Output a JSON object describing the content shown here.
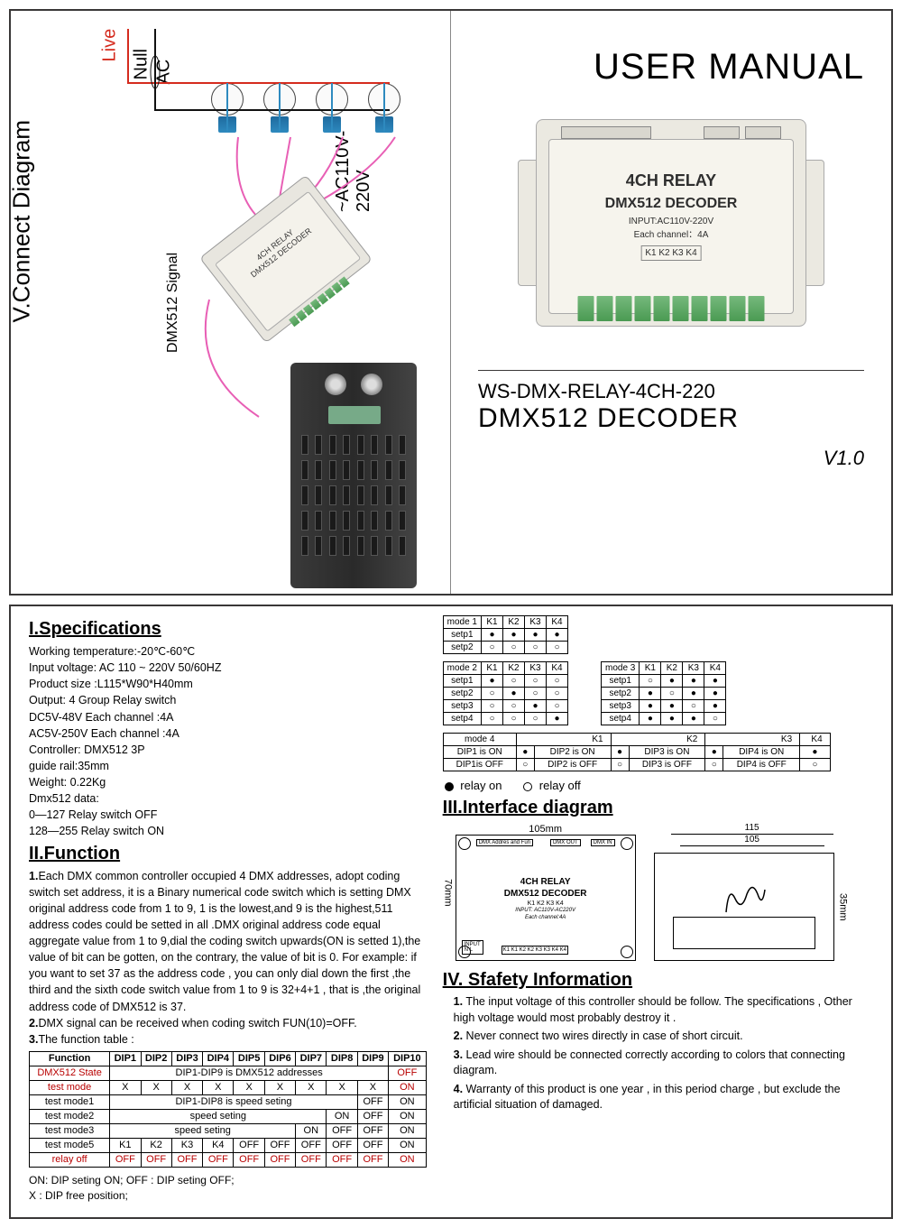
{
  "cover": {
    "user_manual": "USER MANUAL",
    "device": {
      "line1": "4CH RELAY",
      "line2": "DMX512 DECODER",
      "line3": "INPUT:AC110V-220V",
      "line4": "Each channel：4A",
      "channels": "K1 K2 K3 K4"
    },
    "model": "WS-DMX-RELAY-4CH-220",
    "product": "DMX512 DECODER",
    "version": "V1.0"
  },
  "connect_diagram": {
    "title": "V.Connect Diagram",
    "dmx_signal": "DMX512 Signal",
    "live": "Live",
    "null": "Null",
    "ac": "AC",
    "ac_range": "~AC110V-220V",
    "relay_line1": "4CH RELAY",
    "relay_line2": "DMX512 DECODER"
  },
  "specs": {
    "title": "I.Specifications",
    "lines": [
      "Working temperature:-20℃-60℃",
      "Input voltage:  AC 110 ~ 220V  50/60HZ",
      "Product size :L115*W90*H40mm",
      "Output: 4 Group Relay switch",
      "DC5V-48V     Each  channel :4A",
      "AC5V-250V    Each  channel :4A",
      "Controller: DMX512  3P",
      "guide rail:35mm",
      "Weight: 0.22Kg",
      "Dmx512 data:",
      "0—127  Relay switch OFF",
      "128—255  Relay switch ON"
    ]
  },
  "function": {
    "title": "II.Function",
    "p1": "Each DMX common controller occupied 4 DMX addresses, adopt coding switch set address, it is a Binary numerical code switch which is setting DMX original address code from 1 to 9, 1 is the lowest,and 9 is the highest,511 address codes  could be setted  in all .DMX original address code equal aggregate value from 1 to 9,dial the coding switch upwards(ON is setted 1),the value of bit can be  gotten, on the contrary, the value of bit is 0. For example: if you want to set 37 as the address code , you can only dial down the first ,the third and the  sixth code switch value from 1 to 9 is 32+4+1 , that is ,the original address  code of DMX512 is 37.",
    "p2": "DMX signal can be received when coding switch FUN(10)=OFF.",
    "p3": "The function table :",
    "table": {
      "headers": [
        "Function",
        "DIP1",
        "DIP2",
        "DIP3",
        "DIP4",
        "DIP5",
        "DIP6",
        "DIP7",
        "DIP8",
        "DIP9",
        "DIP10"
      ],
      "rows": [
        {
          "label": "DMX512 State",
          "span": "DIP1-DIP9 is DMX512 addresses",
          "last": "OFF",
          "label_color": "#b80000",
          "last_color": "#b80000"
        },
        {
          "label": "test mode",
          "cells": [
            "X",
            "X",
            "X",
            "X",
            "X",
            "X",
            "X",
            "X",
            "X",
            "ON"
          ],
          "label_color": "#b80000",
          "last_color": "#b80000"
        },
        {
          "label": "test mode1",
          "span": "DIP1-DIP8 is speed seting",
          "c9": "OFF",
          "c10": "ON"
        },
        {
          "label": "test mode2",
          "span": "speed seting",
          "span_cols": 7,
          "c8": "ON",
          "c9": "OFF",
          "c10": "ON"
        },
        {
          "label": "test mode3",
          "span": "speed seting",
          "span_cols": 6,
          "c7": "ON",
          "c8": "OFF",
          "c9": "OFF",
          "c10": "ON"
        },
        {
          "label": "test mode5",
          "cells": [
            "K1",
            "K2",
            "K3",
            "K4",
            "OFF",
            "OFF",
            "OFF",
            "OFF",
            "OFF",
            "ON"
          ]
        },
        {
          "label": "relay off",
          "cells": [
            "OFF",
            "OFF",
            "OFF",
            "OFF",
            "OFF",
            "OFF",
            "OFF",
            "OFF",
            "OFF",
            "ON"
          ],
          "label_color": "#b80000",
          "cell_color": "#b80000"
        }
      ]
    },
    "legend1": "ON: DIP seting ON;   OFF :  DIP seting OFF;",
    "legend2": "X : DIP free position;"
  },
  "modes": {
    "filled": "●",
    "empty": "○",
    "mode1": {
      "title": "mode 1",
      "cols": [
        "K1",
        "K2",
        "K3",
        "K4"
      ],
      "rows": [
        {
          "label": "setp1",
          "v": [
            "●",
            "●",
            "●",
            "●"
          ]
        },
        {
          "label": "setp2",
          "v": [
            "○",
            "○",
            "○",
            "○"
          ]
        }
      ]
    },
    "mode2": {
      "title": "mode 2",
      "cols": [
        "K1",
        "K2",
        "K3",
        "K4"
      ],
      "rows": [
        {
          "label": "setp1",
          "v": [
            "●",
            "○",
            "○",
            "○"
          ]
        },
        {
          "label": "setp2",
          "v": [
            "○",
            "●",
            "○",
            "○"
          ]
        },
        {
          "label": "setp3",
          "v": [
            "○",
            "○",
            "●",
            "○"
          ]
        },
        {
          "label": "setp4",
          "v": [
            "○",
            "○",
            "○",
            "●"
          ]
        }
      ]
    },
    "mode3": {
      "title": "mode 3",
      "cols": [
        "K1",
        "K2",
        "K3",
        "K4"
      ],
      "rows": [
        {
          "label": "setp1",
          "v": [
            "○",
            "●",
            "●",
            "●"
          ]
        },
        {
          "label": "setp2",
          "v": [
            "●",
            "○",
            "●",
            "●"
          ]
        },
        {
          "label": "setp3",
          "v": [
            "●",
            "●",
            "○",
            "●"
          ]
        },
        {
          "label": "setp4",
          "v": [
            "●",
            "●",
            "●",
            "○"
          ]
        }
      ]
    },
    "mode4": {
      "title": "mode 4",
      "cols": [
        "K1",
        "K2",
        "K3",
        "K4"
      ],
      "rows": [
        {
          "cells": [
            "DIP1 is ON",
            "●",
            "DIP2 is ON",
            "●",
            "DIP3 is ON",
            "●",
            "DIP4 is ON",
            "●"
          ]
        },
        {
          "cells": [
            "DIP1is OFF",
            "○",
            "DIP2 is OFF",
            "○",
            "DIP3 is OFF",
            "○",
            "DIP4 is OFF",
            "○"
          ]
        }
      ]
    },
    "legend_on": "relay on",
    "legend_off": "relay off"
  },
  "interface": {
    "title": "III.Interface diagram",
    "width": "105mm",
    "height": "70mm",
    "side_w1": "115",
    "side_w2": "105",
    "rail": "35mm",
    "line1": "4CH RELAY",
    "line2": "DMX512 DECODER",
    "channels": "K1   K2   K3   K4",
    "input1": "INPUT: AC110V-AC220V",
    "input2": "Each channel:4A",
    "dmx_addr": "DMX Addres  and Fun",
    "dmx_out": "DMX OUT",
    "dmx_in": "DMX IN",
    "input_label": "INPUT",
    "nl": "N  L",
    "terms": "K1 K1 K2 K2 K3 K3 K4 K4"
  },
  "safety": {
    "title": "IV. Sfafety Information",
    "items": [
      "The input voltage of this controller should be follow. The specifications , Other high voltage would most probably destroy it .",
      "Never connect two wires directly in case of short circuit.",
      "Lead wire should be connected correctly according to colors that connecting diagram.",
      "Warranty of this product is one year , in this period charge , but exclude the artificial situation of damaged."
    ]
  },
  "colors": {
    "border": "#393737",
    "red": "#d52b1e",
    "blue": "#2e8abf",
    "pink": "#e85fb5",
    "green": "#4a9a52",
    "body": "#ebe9e1"
  }
}
